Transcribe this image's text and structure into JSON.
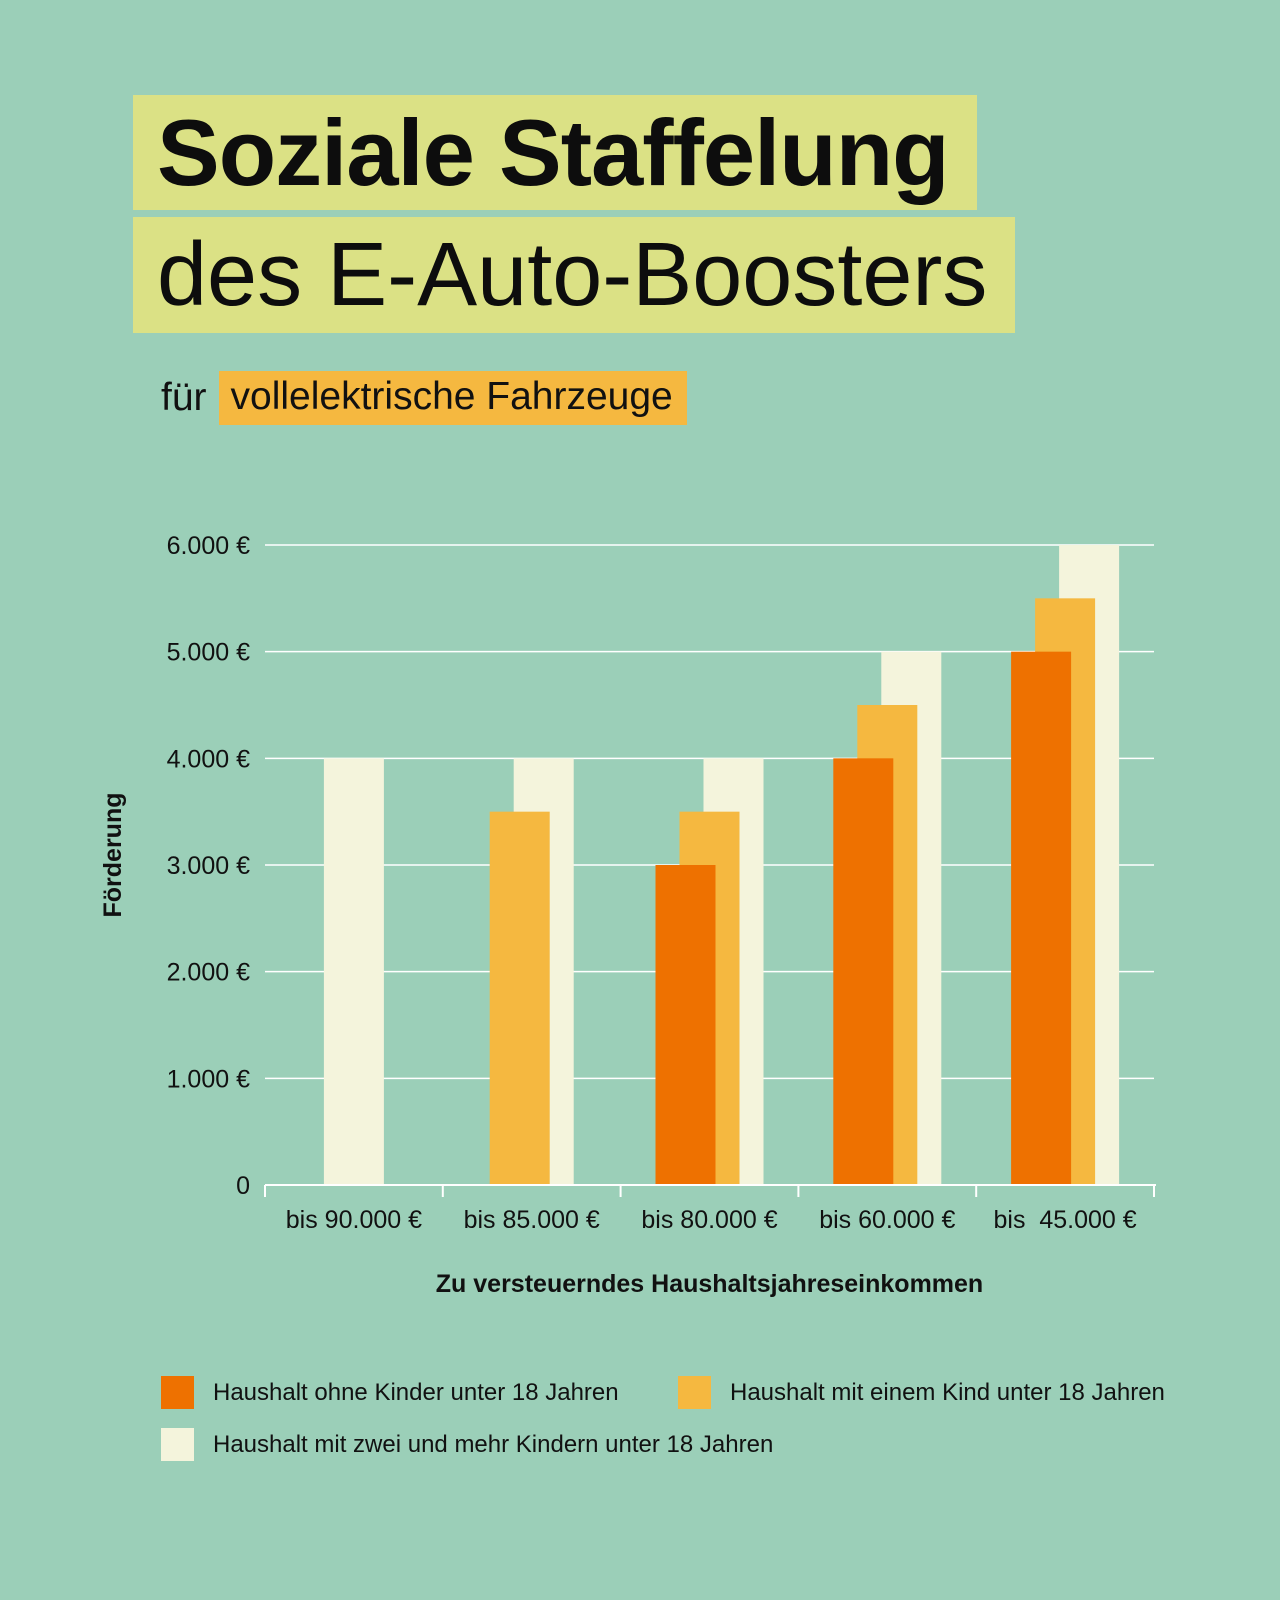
{
  "title": {
    "line1": "Soziale Staffelung",
    "line2": "des E-Auto-Boosters"
  },
  "subtitle": {
    "prefix": "für",
    "highlight": "vollelektrische Fahrzeuge"
  },
  "colors": {
    "background": "#9bcfb8",
    "title_highlight": "#dbe185",
    "subtitle_highlight": "#f5b840",
    "series_0": "#ee7100",
    "series_1": "#f5b840",
    "series_2": "#f4f4dc",
    "gridline": "#ffffff"
  },
  "chart_data": {
    "type": "bar",
    "title": "Soziale Staffelung des E-Auto-Boosters",
    "xlabel": "Zu versteuerndes Haushaltsjahreseinkommen",
    "ylabel": "Förderung",
    "ylim": [
      0,
      6000
    ],
    "yticks": [
      0,
      1000,
      2000,
      3000,
      4000,
      5000,
      6000
    ],
    "ytick_labels": [
      "0",
      "1.000 €",
      "2.000 €",
      "3.000 €",
      "4.000 €",
      "5.000 €",
      "6.000 €"
    ],
    "categories": [
      "bis 90.000 €",
      "bis 85.000 €",
      "bis 80.000 €",
      "bis 60.000 €",
      "bis  45.000 €"
    ],
    "series": [
      {
        "name": "Haushalt ohne Kinder unter 18 Jahren",
        "values": [
          null,
          null,
          3000,
          4000,
          5000
        ]
      },
      {
        "name": "Haushalt mit einem Kind unter 18 Jahren",
        "values": [
          null,
          3500,
          3500,
          4500,
          5500
        ]
      },
      {
        "name": "Haushalt mit zwei und mehr Kindern unter 18 Jahren",
        "values": [
          4000,
          4000,
          4000,
          5000,
          6000
        ]
      }
    ],
    "grid": true,
    "legend_position": "bottom"
  }
}
